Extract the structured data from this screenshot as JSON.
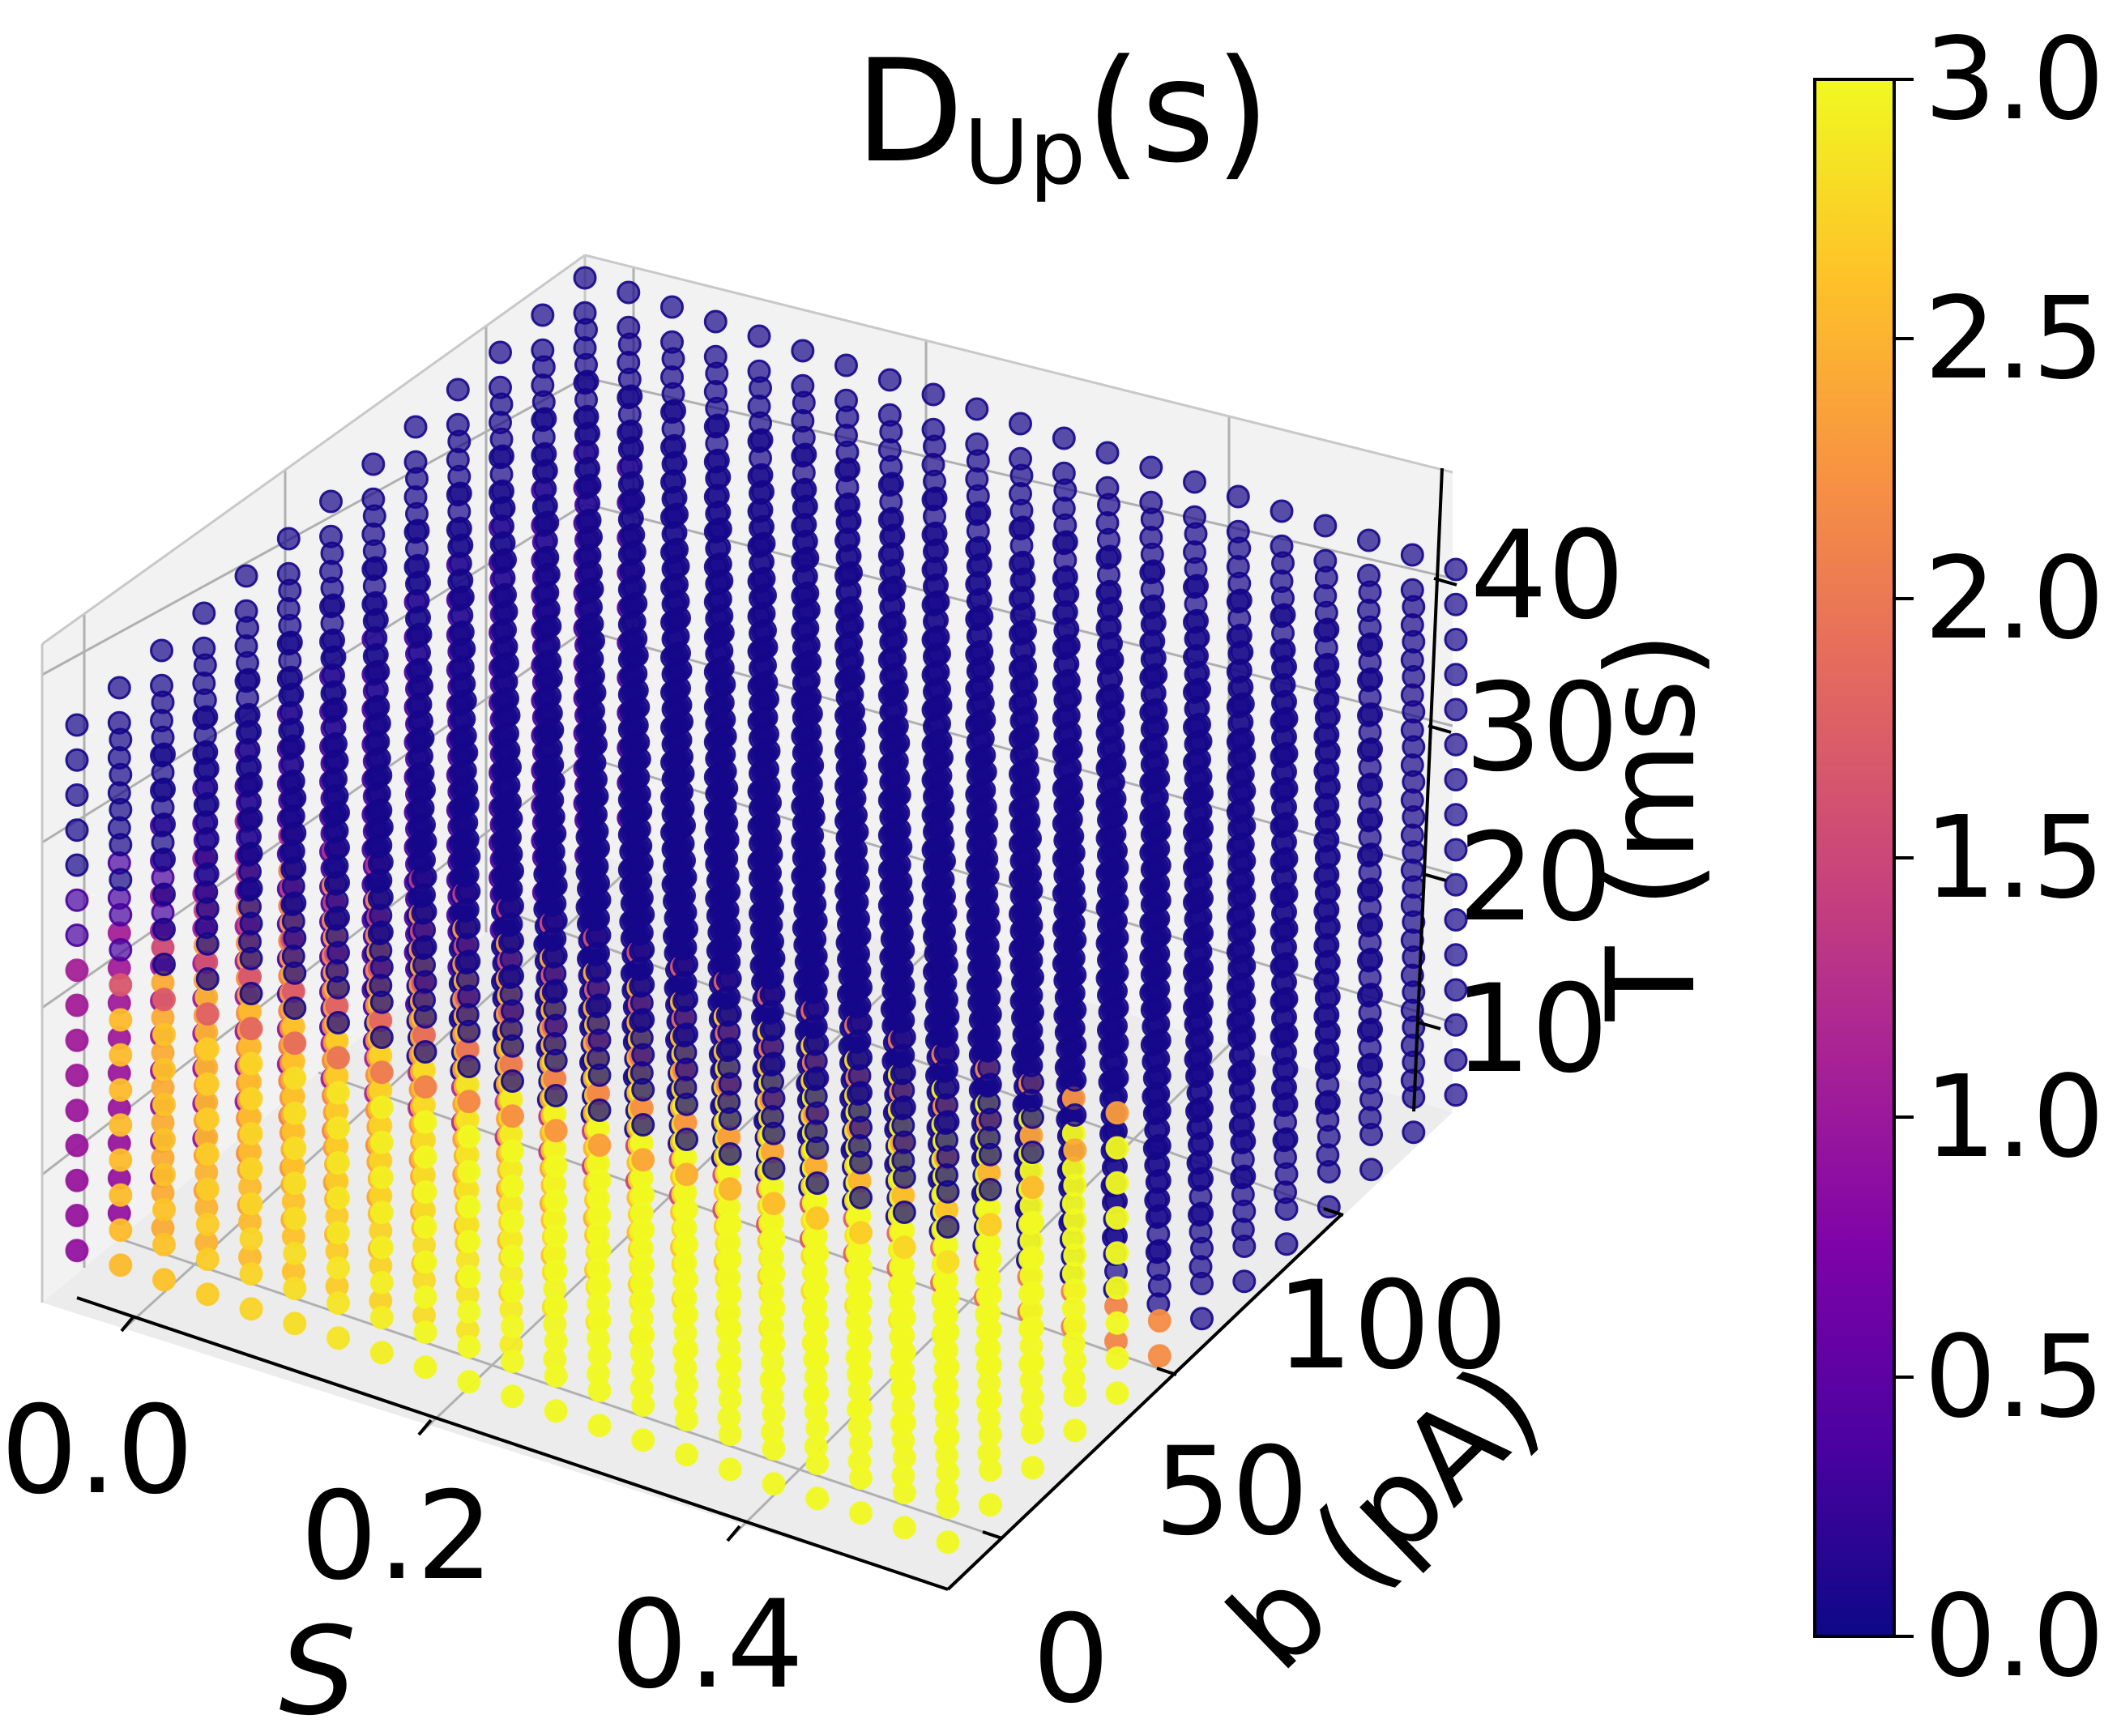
{
  "chart_data": {
    "type": "scatter3d",
    "title": "D",
    "title_subscript": "Up",
    "title_suffix": "(s)",
    "xlabel": "S",
    "ylabel": "b (pA)",
    "zlabel": "T (ms)",
    "x_ticks": [
      "0.0",
      "0.2",
      "0.4"
    ],
    "y_ticks": [
      "0",
      "50",
      "100"
    ],
    "z_ticks": [
      "10",
      "20",
      "30",
      "40"
    ],
    "xlim": [
      0.0,
      0.55
    ],
    "ylim": [
      0,
      150
    ],
    "zlim": [
      2.5,
      45
    ],
    "x_values": "0.00 to 0.55 in steps of 0.0275 (21 values)",
    "y_values": "0 to 150 in steps of 12.5 (13 values)",
    "z_values": "5 to 42.5 in steps of 2.5 (16 values)",
    "grid": true,
    "colormap": "plasma",
    "colorbar": {
      "range": [
        0.0,
        3.0
      ],
      "tick_labels": [
        "0.0",
        "0.5",
        "1.0",
        "1.5",
        "2.0",
        "2.5",
        "3.0"
      ]
    },
    "pattern": "D_Up is about 0 (dark blue) throughout most of the volume; high values (2.0-3.0, orange to yellow) occur for b below about 60 pA combined with T below about 27 ms, increasing with S; intermediate (purple) values appear near S = 0 and along the boundary of that region."
  },
  "colors": {
    "pane": "#f2f2f2",
    "grid": "#b0b0b0",
    "axis": "#000000",
    "text": "#000000"
  }
}
